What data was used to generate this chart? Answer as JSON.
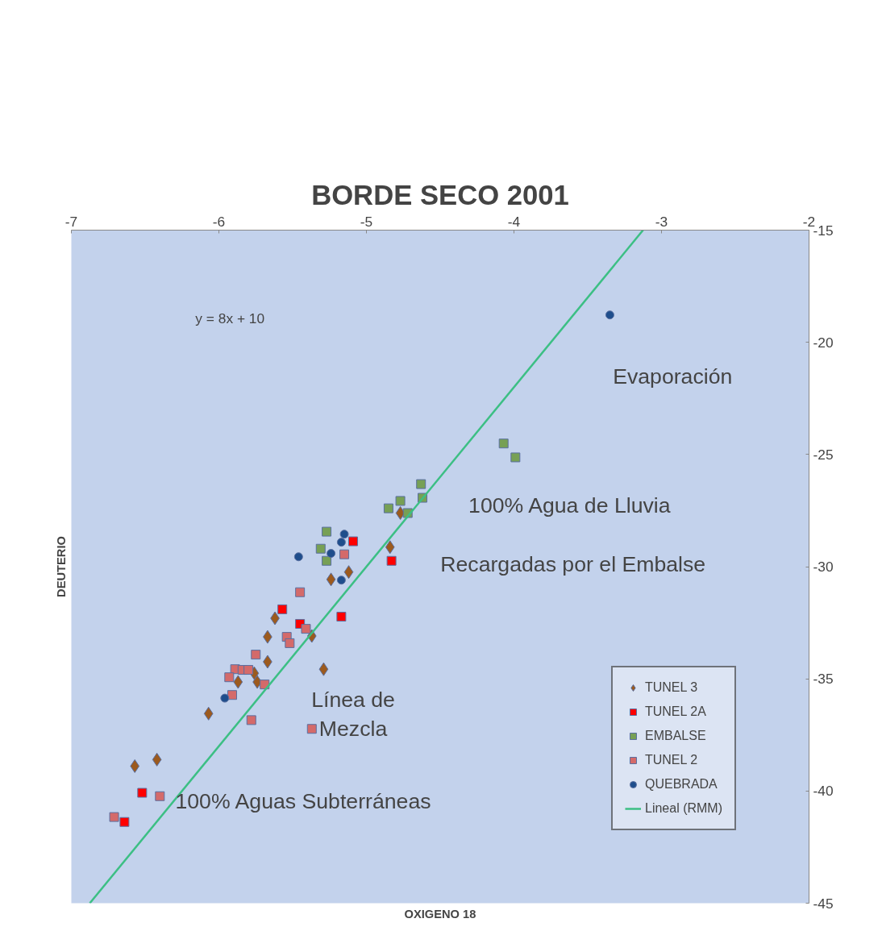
{
  "chart_data": {
    "type": "scatter",
    "title": "BORDE SECO 2001",
    "xlabel": "OXIGENO 18",
    "ylabel": "DEUTERIO",
    "xlim": [
      -7,
      -2
    ],
    "xticks": [
      -7,
      -6,
      -5,
      -4,
      -3,
      -2
    ],
    "ylim": [
      -45,
      -15
    ],
    "yticks": [
      -45,
      -40,
      -35,
      -30,
      -25,
      -20,
      -15
    ],
    "grid": false,
    "legend": "bottom right",
    "series": [
      {
        "name": "TUNEL 3",
        "color": "#9c5a1e",
        "marker": "diamond",
        "x": [
          -4.77,
          -4.84,
          -5.12,
          -5.24,
          -5.62,
          -5.67,
          -5.37,
          -5.67,
          -5.29,
          -5.76,
          -5.74,
          -5.87,
          -6.07,
          -6.42,
          -6.57
        ],
        "values": [
          -27.61,
          -29.13,
          -30.24,
          -30.57,
          -32.3,
          -33.13,
          -33.09,
          -34.24,
          -34.57,
          -34.75,
          -35.14,
          -35.14,
          -36.55,
          -38.6,
          -38.89
        ]
      },
      {
        "name": "TUNEL 2A",
        "color": "#ff0000",
        "marker": "square",
        "x": [
          -5.09,
          -5.57,
          -5.45,
          -5.17,
          -4.83,
          -6.52,
          -6.64
        ],
        "values": [
          -28.87,
          -31.9,
          -32.55,
          -32.23,
          -29.74,
          -40.08,
          -41.38
        ]
      },
      {
        "name": "EMBALSE",
        "color": "#77a055",
        "marker": "square",
        "x": [
          -4.63,
          -4.62,
          -4.77,
          -4.85,
          -4.72,
          -5.27,
          -5.31,
          -5.27,
          -4.07,
          -3.99
        ],
        "values": [
          -26.32,
          -26.93,
          -27.07,
          -27.4,
          -27.61,
          -28.44,
          -29.2,
          -29.74,
          -24.51,
          -25.13
        ]
      },
      {
        "name": "TUNEL 2",
        "color": "#d46a6a",
        "marker": "square",
        "x": [
          -5.15,
          -5.45,
          -5.41,
          -5.54,
          -5.52,
          -5.75,
          -5.89,
          -5.84,
          -5.8,
          -5.93,
          -5.69,
          -5.91,
          -5.78,
          -5.37,
          -6.4,
          -6.71
        ],
        "values": [
          -29.45,
          -31.14,
          -32.77,
          -33.13,
          -33.41,
          -33.92,
          -34.57,
          -34.6,
          -34.6,
          -34.93,
          -35.25,
          -35.72,
          -36.84,
          -37.23,
          -40.23,
          -41.16
        ]
      },
      {
        "name": "QUEBRADA",
        "color": "#1f4e8c",
        "marker": "circle",
        "x": [
          -5.15,
          -5.17,
          -5.24,
          -5.46,
          -5.17,
          -5.96,
          -3.35
        ],
        "values": [
          -28.55,
          -28.91,
          -29.41,
          -29.56,
          -30.6,
          -35.86,
          -18.78
        ]
      },
      {
        "name": "Lineal (RMM)",
        "type": "line",
        "color": "#3cbf84",
        "marker": "none",
        "line_style": "solid",
        "x": [
          -6.875,
          -3.125
        ],
        "values": [
          -45,
          -15
        ]
      }
    ],
    "annotations": [
      "y = 8x + 10",
      "Evaporación",
      "100% Agua de Lluvia",
      "Recargadas por el Embalse",
      "Línea de\nMezcla",
      "100% Aguas Subterráneas"
    ]
  }
}
